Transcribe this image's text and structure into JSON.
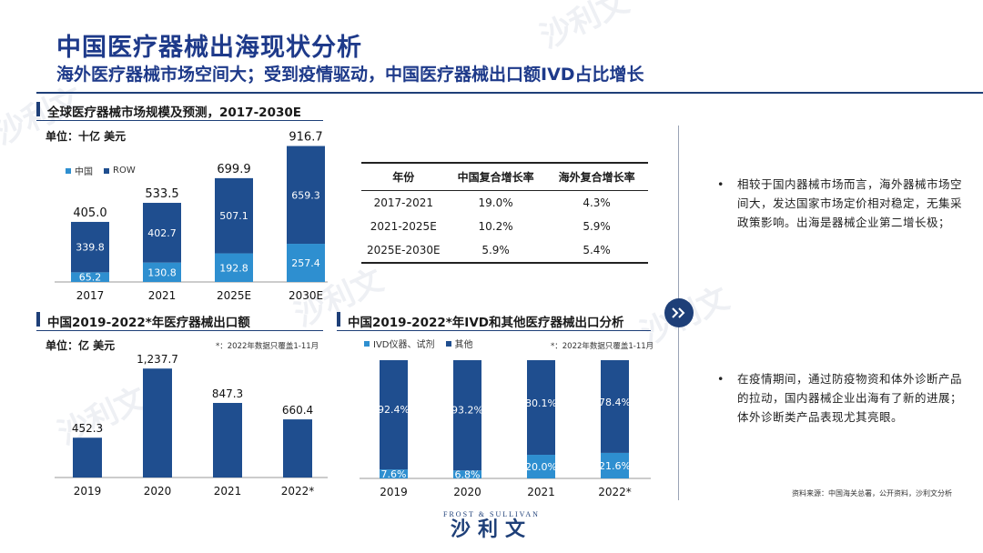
{
  "title": "中国医疗器械出海现状分析",
  "subtitle": "海外医疗器械市场空间大；受到疫情驱动，中国医疗器械出口额IVD占比增长",
  "watermark": {
    "chinese": "沙利文",
    "english": "FROST & SULLIVAN"
  },
  "colors": {
    "navy": "#1e3f78",
    "bar_dark": "#1f4e8f",
    "bar_light": "#2e8fd0",
    "title_blue": "#1e3a8a"
  },
  "chart1": {
    "section_title": "全球医疗器械市场规模及预测，2017-2030E",
    "unit": "单位：十亿 美元",
    "legend": [
      "中国",
      "ROW"
    ]
  },
  "table": {
    "headers": [
      "年份",
      "中国复合增长率",
      "海外复合增长率"
    ],
    "rows": [
      [
        "2017-2021",
        "19.0%",
        "4.3%"
      ],
      [
        "2021-2025E",
        "10.2%",
        "5.9%"
      ],
      [
        "2025E-2030E",
        "5.9%",
        "5.4%"
      ]
    ]
  },
  "chart2": {
    "section_title": "中国2019-2022*年医疗器械出口额",
    "unit": "单位：亿 美元",
    "note": "*：2022年数据只覆盖1-11月"
  },
  "chart3": {
    "section_title": "中国2019-2022*年IVD和其他医疗器械出口分析",
    "legend": [
      "IVD仪器、试剂",
      "其他"
    ],
    "note": "*：2022年数据只覆盖1-11月"
  },
  "bullets": [
    "相较于国内器械市场而言，海外器械市场空间大，发达国家市场定价相对稳定，无集采政策影响。出海是器械企业第二增长极；",
    "在疫情期间，通过防疫物资和体外诊断产品的拉动，国内器械企业出海有了新的进展；体外诊断类产品表现尤其亮眼。"
  ],
  "source": "资料来源：中国海关总署，公开资料，沙利文分析",
  "logo": {
    "english": "FROST & SULLIVAN",
    "chinese": "沙利文"
  },
  "chart_data": [
    {
      "type": "bar",
      "stacked": true,
      "categories": [
        "2017",
        "2021",
        "2025E",
        "2030E"
      ],
      "series": [
        {
          "name": "中国",
          "values": [
            65.2,
            130.8,
            192.8,
            257.4
          ]
        },
        {
          "name": "ROW",
          "values": [
            339.8,
            402.7,
            507.1,
            659.3
          ]
        }
      ],
      "totals": [
        "405.0",
        "533.5",
        "699.9",
        "916.7"
      ],
      "labels_china": [
        "65.2",
        "130.8",
        "192.8",
        "257.4"
      ],
      "labels_row": [
        "339.8",
        "402.7",
        "507.1",
        "659.3"
      ],
      "ylim": [
        0,
        920
      ]
    },
    {
      "type": "bar",
      "categories": [
        "2019",
        "2020",
        "2021",
        "2022*"
      ],
      "values": [
        452.3,
        1237.7,
        847.3,
        660.4
      ],
      "labels": [
        "452.3",
        "1,237.7",
        "847.3",
        "660.4"
      ],
      "ylim": [
        0,
        1240
      ]
    },
    {
      "type": "bar",
      "stacked": true,
      "percent": true,
      "categories": [
        "2019",
        "2020",
        "2021",
        "2022*"
      ],
      "series": [
        {
          "name": "IVD仪器、试剂",
          "values": [
            7.6,
            6.8,
            20.0,
            21.6
          ]
        },
        {
          "name": "其他",
          "values": [
            92.4,
            93.2,
            80.1,
            78.4
          ]
        }
      ],
      "labels_ivd": [
        "7.6%",
        "6.8%",
        "20.0%",
        "21.6%"
      ],
      "labels_other": [
        "92.4%",
        "93.2%",
        "80.1%",
        "78.4%"
      ]
    }
  ]
}
